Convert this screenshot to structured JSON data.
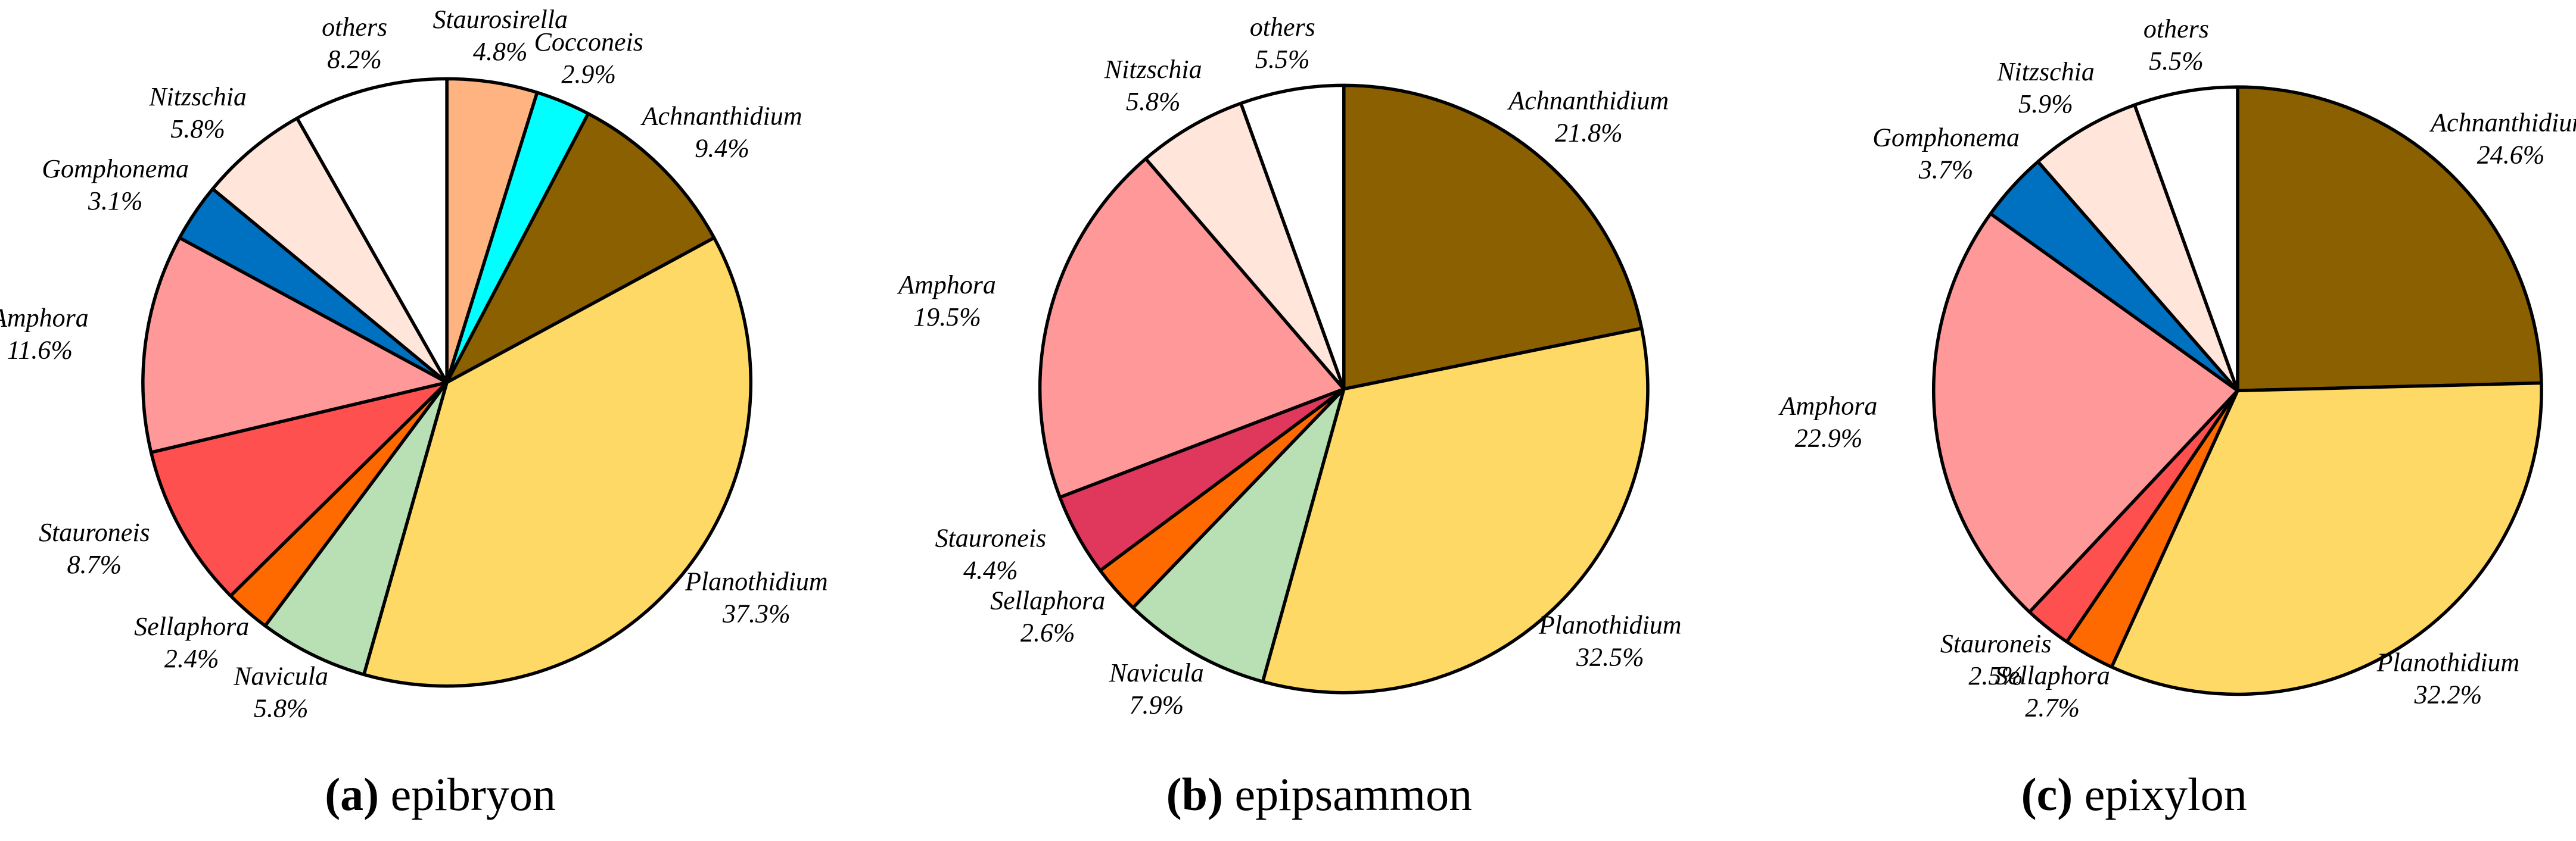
{
  "chart_data": [
    {
      "type": "pie",
      "panel": "(a)",
      "title": "epibryon",
      "categories": [
        "Staurosirella",
        "Cocconeis",
        "Achnanthidium",
        "Planothidium",
        "Navicula",
        "Sellaphora",
        "Stauroneis",
        "Amphora",
        "Gomphonema",
        "Nitzschia",
        "others"
      ],
      "values": [
        4.8,
        2.9,
        9.4,
        37.3,
        5.8,
        2.4,
        8.7,
        11.6,
        3.1,
        5.8,
        8.2
      ],
      "value_labels": [
        "4.8%",
        "2.9%",
        "9.4%",
        "37.3%",
        "5.8%",
        "2.4%",
        "8.7%",
        "11.6%",
        "3.1%",
        "5.8%",
        "8.2%"
      ],
      "colors": [
        "#ffb380",
        "#00ffff",
        "#8b6000",
        "#ffd966",
        "#b9e0b5",
        "#ff6a00",
        "#ff5050",
        "#ff9999",
        "#0070c0",
        "#ffe5da",
        "#ffffff"
      ]
    },
    {
      "type": "pie",
      "panel": "(b)",
      "title": "epipsammon",
      "categories": [
        "Achnanthidium",
        "Planothidium",
        "Navicula",
        "Sellaphora",
        "Stauroneis",
        "Amphora",
        "Nitzschia",
        "others"
      ],
      "values": [
        21.8,
        32.5,
        7.9,
        2.6,
        4.4,
        19.5,
        5.8,
        5.5
      ],
      "value_labels": [
        "21.8%",
        "32.5%",
        "7.9%",
        "2.6%",
        "4.4%",
        "19.5%",
        "5.8%",
        "5.5%"
      ],
      "colors": [
        "#8b6000",
        "#ffd966",
        "#b9e0b5",
        "#ff6a00",
        "#e0385c",
        "#ff9999",
        "#ffe5da",
        "#ffffff"
      ]
    },
    {
      "type": "pie",
      "panel": "(c)",
      "title": "epixylon",
      "categories": [
        "Achnanthidium",
        "Planothidium",
        "Sellaphora",
        "Stauroneis",
        "Amphora",
        "Gomphonema",
        "Nitzschia",
        "others"
      ],
      "values": [
        24.6,
        32.2,
        2.7,
        2.5,
        22.9,
        3.7,
        5.9,
        5.5
      ],
      "value_labels": [
        "24.6%",
        "32.2%",
        "2.7%",
        "2.5%",
        "22.9%",
        "3.7%",
        "5.9%",
        "5.5%"
      ],
      "colors": [
        "#8b6000",
        "#ffd966",
        "#ff6a00",
        "#ff5050",
        "#ff9999",
        "#0070c0",
        "#ffe5da",
        "#ffffff"
      ]
    }
  ]
}
